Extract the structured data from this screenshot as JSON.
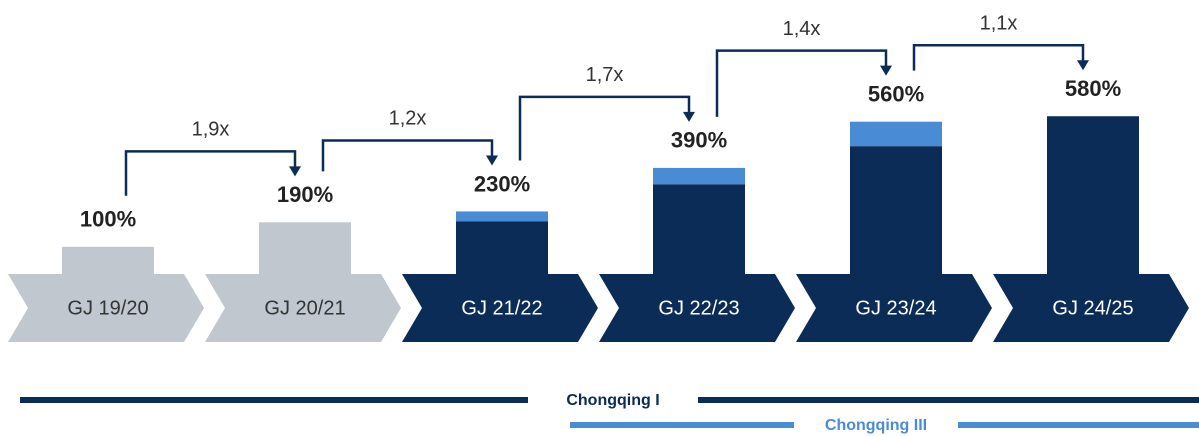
{
  "chart_data": {
    "type": "bar",
    "categories": [
      "GJ 19/20",
      "GJ 20/21",
      "GJ 21/22",
      "GJ 22/23",
      "GJ 23/24",
      "GJ 24/25"
    ],
    "totals": [
      100,
      190,
      230,
      390,
      560,
      580
    ],
    "total_labels": [
      "100%",
      "190%",
      "230%",
      "390%",
      "560%",
      "580%"
    ],
    "series": [
      {
        "name": "Chongqing I",
        "color": "#0a2c57",
        "colors": [
          "#c0c7cf",
          "#c0c7cf",
          "#0a2c57",
          "#0a2c57",
          "#0a2c57",
          "#0a2c57"
        ],
        "values": [
          100,
          190,
          193,
          330,
          470,
          580
        ]
      },
      {
        "name": "Chongqing III",
        "color": "#4a8bd6",
        "values": [
          0,
          0,
          37,
          60,
          90,
          0
        ]
      }
    ],
    "multipliers": [
      {
        "value": 1.9,
        "label": "1,9x"
      },
      {
        "value": 1.2,
        "label": "1,2x"
      },
      {
        "value": 1.7,
        "label": "1,7x"
      },
      {
        "value": 1.4,
        "label": "1,4x"
      },
      {
        "value": 1.1,
        "label": "1,1x"
      }
    ],
    "ylim": [
      0,
      1000
    ]
  }
}
